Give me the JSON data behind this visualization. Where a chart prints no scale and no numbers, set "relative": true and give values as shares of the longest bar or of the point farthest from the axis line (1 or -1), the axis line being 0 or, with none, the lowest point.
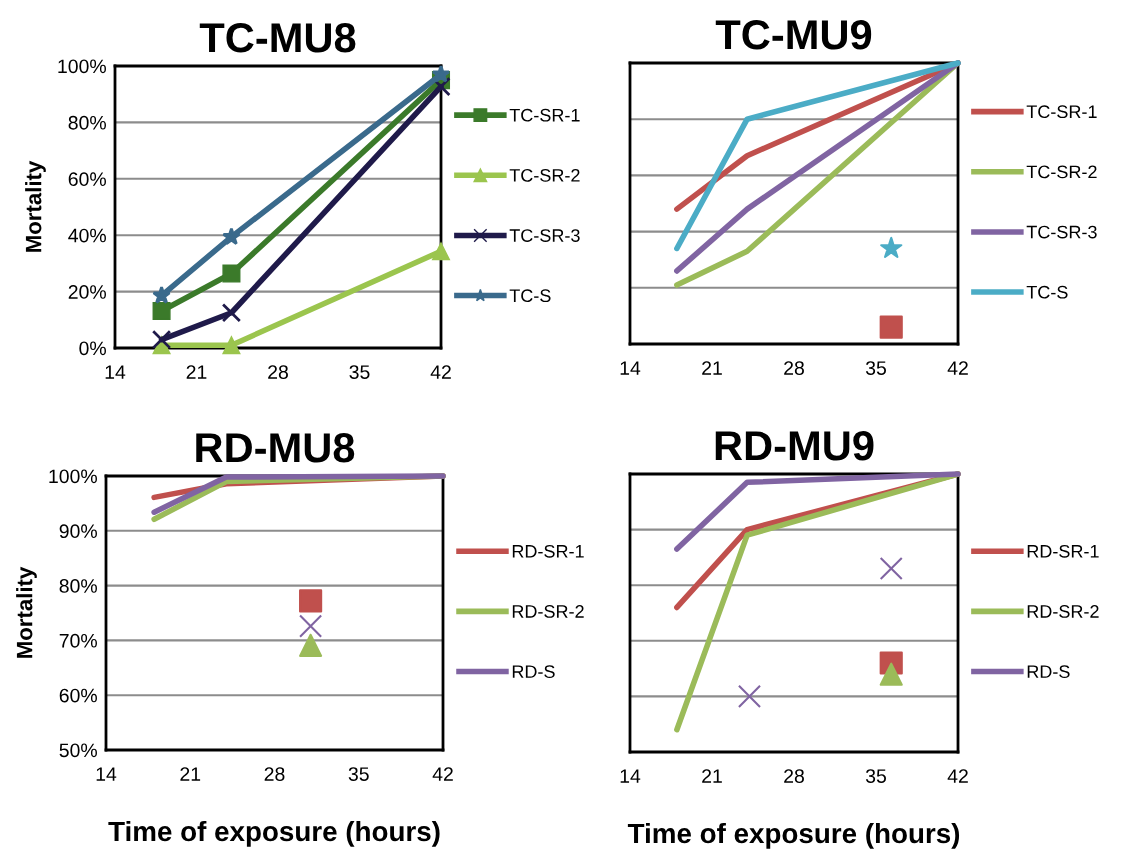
{
  "chart_data": [
    {
      "type": "line",
      "title": "TC-MU8",
      "ylabel": "Mortality",
      "xlim": [
        14,
        42
      ],
      "xticks": [
        14,
        21,
        28,
        35,
        42
      ],
      "ylim": [
        0,
        100
      ],
      "yticks": [
        {
          "value": 0,
          "label": "0%"
        },
        {
          "value": 20,
          "label": "20%"
        },
        {
          "value": 40,
          "label": "40%"
        },
        {
          "value": 60,
          "label": "60%"
        },
        {
          "value": 80,
          "label": "80%"
        },
        {
          "value": 100,
          "label": "100%"
        }
      ],
      "grid": "y",
      "legend": "right",
      "tick_labels": "xy",
      "x": [
        18,
        24,
        42
      ],
      "series": [
        {
          "name": "TC-SR-1",
          "color": "#3b7a2a",
          "marker": "square",
          "values": [
            13.1,
            26.4,
            95
          ]
        },
        {
          "name": "TC-SR-2",
          "color": "#9bc54e",
          "marker": "triangle",
          "values": [
            1,
            1,
            34.3
          ]
        },
        {
          "name": "TC-SR-3",
          "color": "#1f1a4a",
          "marker": "cross",
          "values": [
            3,
            12.5,
            92.7
          ]
        },
        {
          "name": "TC-S",
          "color": "#3a6a8c",
          "marker": "star",
          "values": [
            18.6,
            39.4,
            97
          ]
        }
      ]
    },
    {
      "type": "line",
      "title": "TC-MU9",
      "relative": true,
      "xlim": [
        14,
        42
      ],
      "xticks": [
        14,
        21,
        28,
        35,
        42
      ],
      "grid": "y",
      "legend": "right",
      "tick_labels": "x",
      "x": [
        18,
        24,
        42
      ],
      "series": [
        {
          "name": "TC-SR-1",
          "color": "#c0504d",
          "marker": "none",
          "values": [
            0.48,
            0.67,
            1
          ]
        },
        {
          "name": "TC-SR-2",
          "color": "#9bbb59",
          "marker": "none",
          "values": [
            0.21,
            0.33,
            1
          ]
        },
        {
          "name": "TC-SR-3",
          "color": "#8064a2",
          "marker": "none",
          "values": [
            0.26,
            0.48,
            1
          ]
        },
        {
          "name": "TC-S",
          "color": "#4bacc6",
          "marker": "none",
          "values": [
            0.34,
            0.8,
            1
          ]
        },
        {
          "type": "scatter",
          "color": "#c0504d",
          "marker": "square",
          "x": [
            36.3
          ],
          "values": [
            0.06
          ]
        },
        {
          "type": "scatter",
          "color": "#4bacc6",
          "marker": "star",
          "x": [
            36.3
          ],
          "values": [
            0.34
          ]
        }
      ]
    },
    {
      "type": "line",
      "title": "RD-MU8",
      "ylabel": "Mortality",
      "xlabel": "Time of exposure (hours)",
      "xlim": [
        14,
        42
      ],
      "xticks": [
        14,
        21,
        28,
        35,
        42
      ],
      "ylim": [
        50,
        100
      ],
      "yticks": [
        {
          "value": 50,
          "label": "50%"
        },
        {
          "value": 60,
          "label": "60%"
        },
        {
          "value": 70,
          "label": "70%"
        },
        {
          "value": 80,
          "label": "80%"
        },
        {
          "value": 90,
          "label": "90%"
        },
        {
          "value": 100,
          "label": "100%"
        }
      ],
      "grid": "y",
      "legend": "right",
      "tick_labels": "xy",
      "x": [
        18,
        24,
        42
      ],
      "series": [
        {
          "name": "RD-SR-1",
          "color": "#c0504d",
          "marker": "none",
          "values": [
            96.1,
            98.6,
            100
          ]
        },
        {
          "name": "RD-SR-2",
          "color": "#9bbb59",
          "marker": "none",
          "values": [
            92.1,
            99,
            100
          ]
        },
        {
          "name": "RD-S",
          "color": "#8064a2",
          "marker": "none",
          "values": [
            93.4,
            99.8,
            100
          ]
        },
        {
          "type": "scatter",
          "color": "#c0504d",
          "marker": "square",
          "x": [
            31
          ],
          "values": [
            77.2
          ]
        },
        {
          "type": "scatter",
          "color": "#8064a2",
          "marker": "cross",
          "x": [
            31
          ],
          "values": [
            72.6
          ]
        },
        {
          "type": "scatter",
          "color": "#9bbb59",
          "marker": "triangle",
          "x": [
            31
          ],
          "values": [
            69.1
          ]
        }
      ]
    },
    {
      "type": "line",
      "title": "RD-MU9",
      "relative": true,
      "xlabel": "Time of exposure (hours)",
      "xlim": [
        14,
        42
      ],
      "xticks": [
        14,
        21,
        28,
        35,
        42
      ],
      "grid": "y",
      "legend": "right",
      "tick_labels": "x",
      "x": [
        18,
        24,
        42
      ],
      "series": [
        {
          "name": "RD-SR-1",
          "color": "#c0504d",
          "marker": "none",
          "values": [
            0.52,
            0.8,
            1
          ]
        },
        {
          "name": "RD-SR-2",
          "color": "#9bbb59",
          "marker": "none",
          "values": [
            0.08,
            0.78,
            1
          ]
        },
        {
          "name": "RD-S",
          "color": "#8064a2",
          "marker": "none",
          "values": [
            0.73,
            0.97,
            1
          ]
        },
        {
          "type": "scatter",
          "color": "#8064a2",
          "marker": "cross",
          "x": [
            24.2,
            36.3
          ],
          "values": [
            0.2,
            0.66
          ]
        },
        {
          "type": "scatter",
          "color": "#c0504d",
          "marker": "square",
          "x": [
            36.3
          ],
          "values": [
            0.32
          ]
        },
        {
          "type": "scatter",
          "color": "#9bbb59",
          "marker": "triangle",
          "x": [
            36.3
          ],
          "values": [
            0.28
          ]
        }
      ]
    }
  ]
}
